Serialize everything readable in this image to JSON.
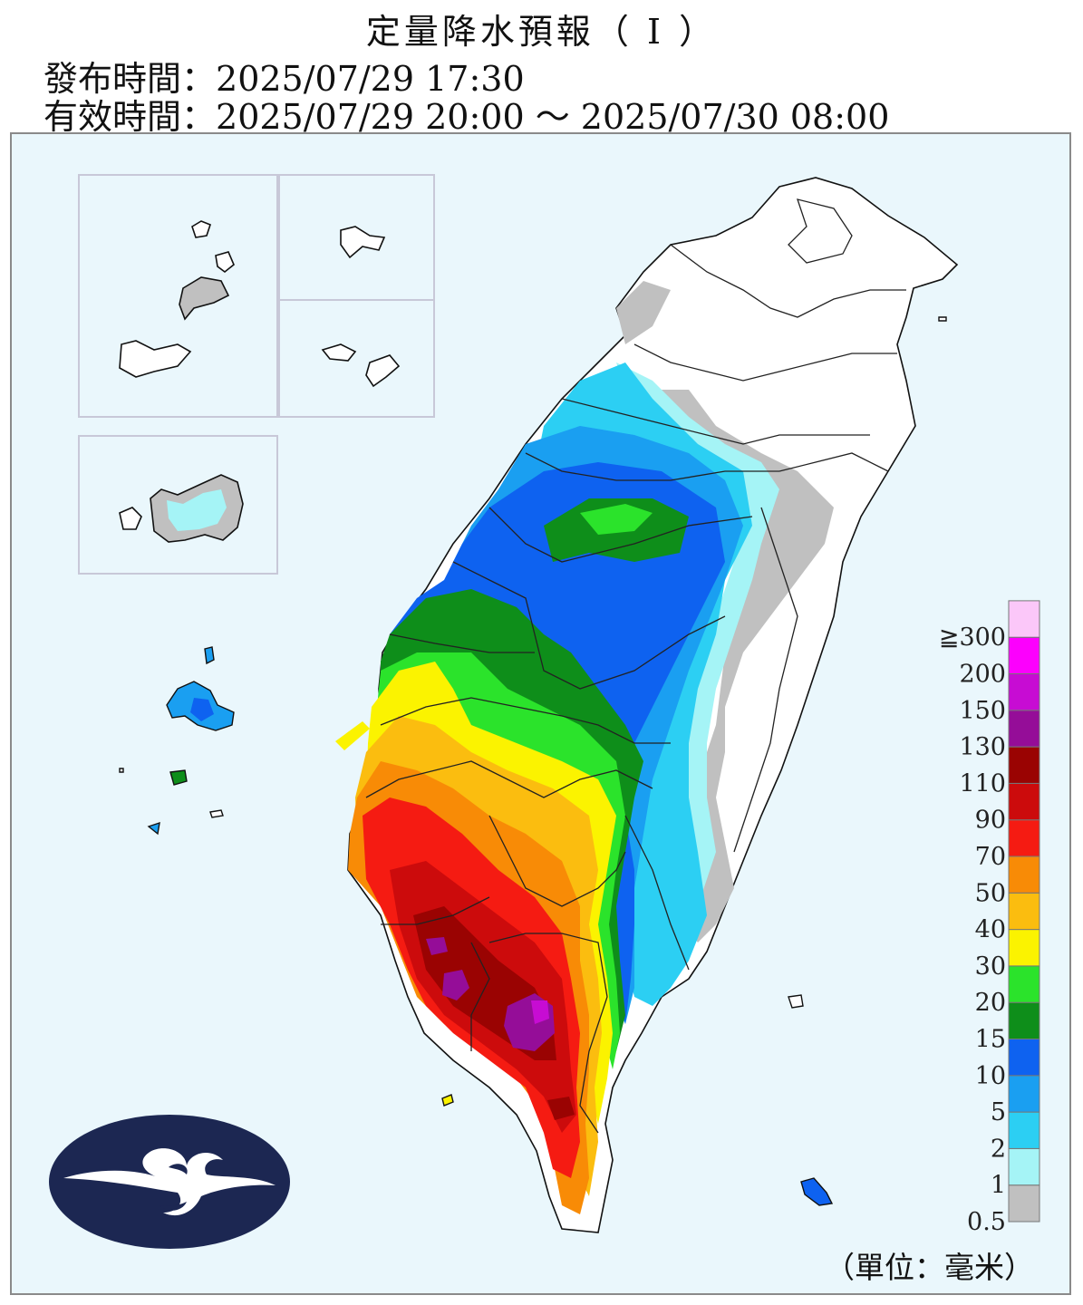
{
  "title": "定量降水預報（ I ）",
  "issue_time": {
    "label": "發布時間：",
    "value": "2025/07/29 17:30"
  },
  "valid_time": {
    "label": "有效時間：",
    "value": "2025/07/29 20:00 ～ 2025/07/30 08:00"
  },
  "legend": {
    "unit": "（單位：毫米）",
    "bins": [
      {
        "label": "0.5",
        "color": "#c0c0c0"
      },
      {
        "label": "1",
        "color": "#a5f4f6"
      },
      {
        "label": "2",
        "color": "#2ccff3"
      },
      {
        "label": "5",
        "color": "#1a9ff1"
      },
      {
        "label": "10",
        "color": "#0e62f0"
      },
      {
        "label": "15",
        "color": "#0e8e1a"
      },
      {
        "label": "20",
        "color": "#2be32b"
      },
      {
        "label": "30",
        "color": "#fbf300"
      },
      {
        "label": "40",
        "color": "#fbbd0f"
      },
      {
        "label": "50",
        "color": "#f88b06"
      },
      {
        "label": "70",
        "color": "#f51b12"
      },
      {
        "label": "90",
        "color": "#cc0b0c"
      },
      {
        "label": "110",
        "color": "#9a0302"
      },
      {
        "label": "130",
        "color": "#950d98"
      },
      {
        "label": "150",
        "color": "#c70cd3"
      },
      {
        "label": "200",
        "color": "#fc00fd"
      },
      {
        "label": "≧300",
        "color": "#fbc7f9"
      }
    ]
  },
  "colors": {
    "sea": "#eaf7fc",
    "land": "#ffffff",
    "border": "#111111",
    "logo": "#1c2752"
  }
}
